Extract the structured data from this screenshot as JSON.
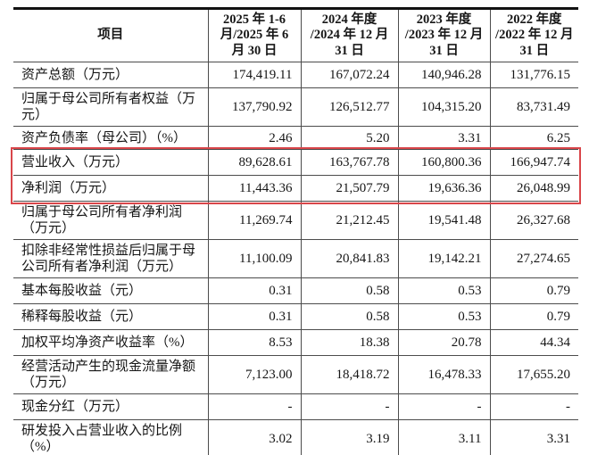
{
  "table": {
    "columns": [
      "项目",
      "2025 年 1-6\n月/2025 年 6\n月 30 日",
      "2024 年度\n/2024 年 12 月\n31 日",
      "2023 年度\n/2023 年 12 月\n31 日",
      "2022 年度\n/2022 年 12 月\n31 日"
    ],
    "rows": [
      {
        "label": "资产总额（万元）",
        "values": [
          "174,419.11",
          "167,072.24",
          "140,946.28",
          "131,776.15"
        ]
      },
      {
        "label": "归属于母公司所有者权益（万元）",
        "values": [
          "137,790.92",
          "126,512.77",
          "104,315.20",
          "83,731.49"
        ]
      },
      {
        "label": "资产负债率（母公司）（%）",
        "values": [
          "2.46",
          "5.20",
          "3.31",
          "6.25"
        ]
      },
      {
        "label": "营业收入（万元）",
        "values": [
          "89,628.61",
          "163,767.78",
          "160,800.36",
          "166,947.74"
        ]
      },
      {
        "label": "净利润（万元）",
        "values": [
          "11,443.36",
          "21,507.79",
          "19,636.36",
          "26,048.99"
        ]
      },
      {
        "label": "归属于母公司所有者净利润（万元）",
        "values": [
          "11,269.74",
          "21,212.45",
          "19,541.48",
          "26,327.68"
        ]
      },
      {
        "label": "扣除非经常性损益后归属于母公司所有者净利润（万元）",
        "values": [
          "11,100.09",
          "20,841.83",
          "19,142.21",
          "27,274.65"
        ]
      },
      {
        "label": "基本每股收益（元）",
        "values": [
          "0.31",
          "0.58",
          "0.53",
          "0.79"
        ]
      },
      {
        "label": "稀释每股收益（元）",
        "values": [
          "0.31",
          "0.58",
          "0.53",
          "0.79"
        ]
      },
      {
        "label": "加权平均净资产收益率（%）",
        "values": [
          "8.53",
          "18.38",
          "20.78",
          "44.34"
        ]
      },
      {
        "label": "经营活动产生的现金流量净额（万元）",
        "values": [
          "7,123.00",
          "18,418.72",
          "16,478.33",
          "17,655.20"
        ]
      },
      {
        "label": "现金分红（万元）",
        "values": [
          "-",
          "-",
          "-",
          "-"
        ]
      },
      {
        "label": "研发投入占营业收入的比例（%）",
        "values": [
          "3.02",
          "3.19",
          "3.11",
          "3.31"
        ]
      }
    ],
    "highlight_rows": [
      3,
      4
    ],
    "highlight_color": "#d9464a"
  }
}
